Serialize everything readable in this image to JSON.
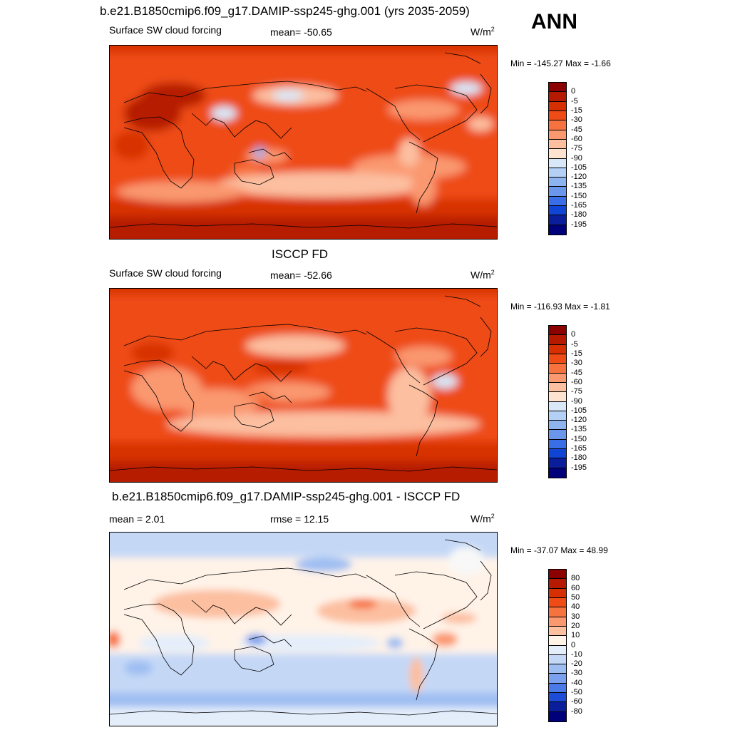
{
  "season": "ANN",
  "panels": [
    {
      "title": "b.e21.B1850cmip6.f09_g17.DAMIP-ssp245-ghg.001 (yrs 2035-2059)",
      "left_label": "Surface SW cloud forcing",
      "center_label": "mean= -50.65",
      "units": "W/m",
      "units_sup": "2",
      "minmax": "Min = -145.27 Max =  -1.66",
      "colorbar": {
        "labels": [
          "0",
          "-5",
          "-15",
          "-30",
          "-45",
          "-60",
          "-75",
          "-90",
          "-105",
          "-120",
          "-135",
          "-150",
          "-165",
          "-180",
          "-195"
        ],
        "colors": [
          "#8b0000",
          "#b51a00",
          "#d73000",
          "#ee4b16",
          "#f67340",
          "#fa9870",
          "#fcbfa0",
          "#fee3d0",
          "#d8e8f8",
          "#b4d0f4",
          "#8eb4f0",
          "#6a96ec",
          "#3a6ee6",
          "#1044d4",
          "#0a1e9c",
          "#00007a"
        ]
      }
    },
    {
      "title": "ISCCP FD",
      "left_label": "Surface SW cloud forcing",
      "center_label": "mean= -52.66",
      "units": "W/m",
      "units_sup": "2",
      "minmax": "Min = -116.93 Max =  -1.81",
      "colorbar": {
        "labels": [
          "0",
          "-5",
          "-15",
          "-30",
          "-45",
          "-60",
          "-75",
          "-90",
          "-105",
          "-120",
          "-135",
          "-150",
          "-165",
          "-180",
          "-195"
        ],
        "colors": [
          "#8b0000",
          "#b51a00",
          "#d73000",
          "#ee4b16",
          "#f67340",
          "#fa9870",
          "#fcbfa0",
          "#fee3d0",
          "#d8e8f8",
          "#b4d0f4",
          "#8eb4f0",
          "#6a96ec",
          "#3a6ee6",
          "#1044d4",
          "#0a1e9c",
          "#00007a"
        ]
      }
    },
    {
      "title": "b.e21.B1850cmip6.f09_g17.DAMIP-ssp245-ghg.001 - ISCCP FD",
      "left_label": "mean =   2.01",
      "center_label": "rmse =  12.15",
      "units": "W/m",
      "units_sup": "2",
      "minmax": "Min = -37.07 Max =  48.99",
      "colorbar": {
        "labels": [
          "80",
          "60",
          "50",
          "40",
          "30",
          "20",
          "10",
          "0",
          "-10",
          "-20",
          "-30",
          "-40",
          "-50",
          "-60",
          "-80"
        ],
        "colors": [
          "#8b0000",
          "#b51a00",
          "#d73000",
          "#ee4b16",
          "#f67340",
          "#fa9870",
          "#fcbfa0",
          "#fff3e8",
          "#e4eefa",
          "#c4d8f6",
          "#9ebef2",
          "#7aa0ee",
          "#4a7ae8",
          "#1c4cd8",
          "#0a1e9c",
          "#00007a"
        ]
      }
    }
  ]
}
